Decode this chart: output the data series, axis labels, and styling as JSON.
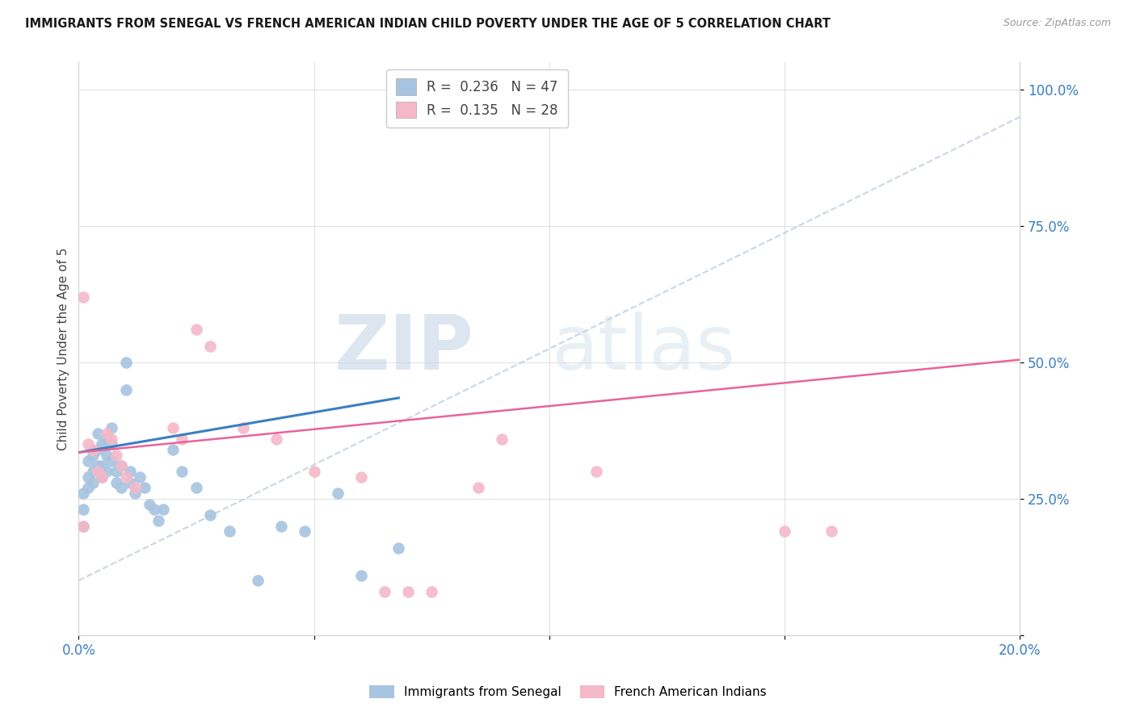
{
  "title": "IMMIGRANTS FROM SENEGAL VS FRENCH AMERICAN INDIAN CHILD POVERTY UNDER THE AGE OF 5 CORRELATION CHART",
  "source": "Source: ZipAtlas.com",
  "ylabel": "Child Poverty Under the Age of 5",
  "xlim": [
    0.0,
    0.2
  ],
  "ylim": [
    0.0,
    1.05
  ],
  "yticks": [
    0.0,
    0.25,
    0.5,
    0.75,
    1.0
  ],
  "ytick_labels": [
    "",
    "25.0%",
    "50.0%",
    "75.0%",
    "100.0%"
  ],
  "xticks": [
    0.0,
    0.05,
    0.1,
    0.15,
    0.2
  ],
  "xtick_labels": [
    "0.0%",
    "",
    "",
    "",
    "20.0%"
  ],
  "blue_R": 0.236,
  "blue_N": 47,
  "pink_R": 0.135,
  "pink_N": 28,
  "blue_scatter_color": "#a8c4e0",
  "pink_scatter_color": "#f4b8c8",
  "blue_line_color": "#3a7fc1",
  "pink_line_color": "#e8649a",
  "dashed_line_color": "#c0cfe0",
  "legend_label_blue": "Immigrants from Senegal",
  "legend_label_pink": "French American Indians",
  "blue_x": [
    0.001,
    0.001,
    0.001,
    0.002,
    0.002,
    0.002,
    0.003,
    0.003,
    0.003,
    0.004,
    0.004,
    0.004,
    0.005,
    0.005,
    0.005,
    0.006,
    0.006,
    0.006,
    0.007,
    0.007,
    0.007,
    0.008,
    0.008,
    0.009,
    0.009,
    0.01,
    0.01,
    0.011,
    0.011,
    0.012,
    0.013,
    0.014,
    0.015,
    0.016,
    0.017,
    0.018,
    0.02,
    0.022,
    0.025,
    0.028,
    0.032,
    0.038,
    0.043,
    0.048,
    0.055,
    0.06,
    0.068
  ],
  "blue_y": [
    0.2,
    0.23,
    0.26,
    0.27,
    0.29,
    0.32,
    0.28,
    0.3,
    0.33,
    0.31,
    0.34,
    0.37,
    0.29,
    0.31,
    0.35,
    0.3,
    0.33,
    0.36,
    0.32,
    0.35,
    0.38,
    0.28,
    0.3,
    0.27,
    0.31,
    0.45,
    0.5,
    0.3,
    0.28,
    0.26,
    0.29,
    0.27,
    0.24,
    0.23,
    0.21,
    0.23,
    0.34,
    0.3,
    0.27,
    0.22,
    0.19,
    0.1,
    0.2,
    0.19,
    0.26,
    0.11,
    0.16
  ],
  "pink_x": [
    0.001,
    0.001,
    0.002,
    0.003,
    0.004,
    0.005,
    0.006,
    0.007,
    0.008,
    0.009,
    0.01,
    0.012,
    0.02,
    0.022,
    0.025,
    0.028,
    0.035,
    0.042,
    0.05,
    0.06,
    0.065,
    0.07,
    0.075,
    0.085,
    0.09,
    0.11,
    0.15,
    0.16
  ],
  "pink_y": [
    0.2,
    0.62,
    0.35,
    0.34,
    0.3,
    0.29,
    0.37,
    0.36,
    0.33,
    0.31,
    0.29,
    0.27,
    0.38,
    0.36,
    0.56,
    0.53,
    0.38,
    0.36,
    0.3,
    0.29,
    0.08,
    0.08,
    0.08,
    0.27,
    0.36,
    0.3,
    0.19,
    0.19
  ]
}
